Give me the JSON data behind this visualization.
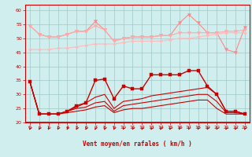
{
  "background_color": "#d0eeed",
  "grid_color": "#a0c8c8",
  "xlabel": "Vent moyen/en rafales ( km/h )",
  "xlabel_color": "#cc0000",
  "tick_color": "#cc0000",
  "ylim": [
    20,
    62
  ],
  "xlim": [
    -0.5,
    23.5
  ],
  "yticks": [
    20,
    25,
    30,
    35,
    40,
    45,
    50,
    55,
    60
  ],
  "xticks": [
    0,
    1,
    2,
    3,
    4,
    5,
    6,
    7,
    8,
    9,
    10,
    11,
    12,
    13,
    14,
    15,
    16,
    17,
    18,
    19,
    20,
    21,
    22,
    23
  ],
  "series": [
    {
      "color": "#ff8888",
      "marker": "v",
      "ms": 3,
      "lw": 0.8,
      "y": [
        54.5,
        51.5,
        50.5,
        50.5,
        51.5,
        52.5,
        52.5,
        56,
        53,
        49,
        50,
        50.5,
        50.5,
        50.5,
        51,
        51,
        55.5,
        58.5,
        55.5,
        52,
        52,
        46,
        45,
        54
      ]
    },
    {
      "color": "#ffaaaa",
      "marker": "v",
      "ms": 3,
      "lw": 0.8,
      "y": [
        54.5,
        51.5,
        50.5,
        50.5,
        51.5,
        52.5,
        52.5,
        54.5,
        53,
        49,
        50,
        50.5,
        50.5,
        50.5,
        51,
        51,
        52,
        52,
        52,
        52,
        52,
        52.5,
        52.5,
        53
      ]
    },
    {
      "color": "#ffbbbb",
      "marker": "D",
      "ms": 2,
      "lw": 0.8,
      "y": [
        46,
        46,
        46,
        46.5,
        46.5,
        47,
        47.5,
        48,
        48,
        48,
        48.5,
        49,
        49,
        49,
        49,
        49.5,
        50,
        50,
        50.5,
        51,
        51.5,
        52,
        52,
        52
      ]
    },
    {
      "color": "#cc0000",
      "marker": "s",
      "ms": 2.5,
      "lw": 1.0,
      "y": [
        34.5,
        23,
        23,
        23,
        24,
        26,
        27,
        35,
        35.5,
        28.5,
        33,
        32,
        32,
        37,
        37,
        37,
        37,
        38.5,
        38.5,
        33,
        30,
        24,
        24,
        23
      ]
    },
    {
      "color": "#cc0000",
      "marker": null,
      "ms": 0,
      "lw": 0.8,
      "y": [
        34.5,
        23,
        23,
        23,
        24,
        25.5,
        27,
        29,
        30,
        25,
        27.5,
        28,
        28.5,
        29.5,
        30,
        30.5,
        31,
        31.5,
        32,
        32.5,
        30,
        24,
        24,
        23
      ]
    },
    {
      "color": "#cc0000",
      "marker": null,
      "ms": 0,
      "lw": 0.8,
      "y": [
        34.5,
        23,
        23,
        23,
        24,
        25,
        25.5,
        27,
        27.5,
        24,
        26,
        26.5,
        27,
        27.5,
        28,
        28.5,
        29,
        29.5,
        30,
        30,
        27.5,
        23.5,
        23.5,
        23
      ]
    },
    {
      "color": "#cc0000",
      "marker": null,
      "ms": 0,
      "lw": 0.8,
      "y": [
        34.5,
        23,
        23,
        23,
        23.5,
        24,
        24.5,
        25.5,
        26,
        23.5,
        24.5,
        25,
        25,
        25.5,
        26,
        26.5,
        27,
        27.5,
        28,
        28,
        25,
        23,
        23,
        23
      ]
    }
  ],
  "arrow_color": "#cc0000",
  "spine_color": "#cc0000",
  "bottom_line_y": 20
}
